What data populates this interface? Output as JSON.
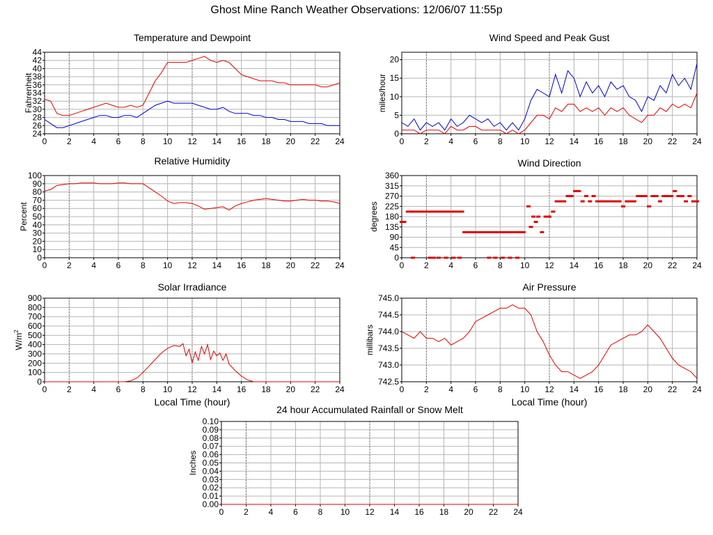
{
  "page": {
    "title": "Ghost Mine Ranch Weather Observations: 12/06/07 11:55p"
  },
  "colors": {
    "grid": "#b4b4b4",
    "series_red": "#e00000",
    "series_blue": "#0000d0",
    "axis": "#000000"
  },
  "chart_data": [
    {
      "id": "temp",
      "type": "line",
      "title": "Temperature and Dewpoint",
      "ylabel": "Fahrenheit",
      "xlabel": "",
      "xlim": [
        0,
        24
      ],
      "ylim": [
        24,
        44
      ],
      "yticks": [
        24,
        26,
        28,
        30,
        32,
        34,
        36,
        38,
        40,
        42,
        44
      ],
      "xticks": [
        0,
        2,
        4,
        6,
        8,
        10,
        12,
        14,
        16,
        18,
        20,
        22,
        24
      ],
      "grid": true,
      "series": [
        {
          "color_key": "series_red",
          "x": [
            0,
            0.5,
            1,
            1.5,
            2,
            2.5,
            3,
            3.5,
            4,
            4.5,
            5,
            5.5,
            6,
            6.5,
            7,
            7.5,
            8,
            8.5,
            9,
            9.5,
            10,
            10.5,
            11,
            11.5,
            12,
            12.5,
            13,
            13.5,
            14,
            14.5,
            15,
            15.5,
            16,
            16.5,
            17,
            17.5,
            18,
            18.5,
            19,
            19.5,
            20,
            20.5,
            21,
            21.5,
            22,
            22.5,
            23,
            23.5,
            24
          ],
          "values": [
            32.5,
            32,
            29,
            28.5,
            28.5,
            29,
            29.5,
            30,
            30.5,
            31,
            31.5,
            31,
            30.5,
            30.5,
            31,
            30.5,
            31,
            34,
            37,
            39,
            41.5,
            41.5,
            41.5,
            41.5,
            42,
            42.5,
            43,
            42,
            41.5,
            42,
            41.5,
            40,
            38.5,
            38,
            37.5,
            37,
            37,
            37,
            36.5,
            36.5,
            36,
            36,
            36,
            36,
            36,
            35.5,
            35.5,
            36,
            36.5
          ]
        },
        {
          "color_key": "series_blue",
          "x": [
            0,
            0.5,
            1,
            1.5,
            2,
            2.5,
            3,
            3.5,
            4,
            4.5,
            5,
            5.5,
            6,
            6.5,
            7,
            7.5,
            8,
            8.5,
            9,
            9.5,
            10,
            10.5,
            11,
            11.5,
            12,
            12.5,
            13,
            13.5,
            14,
            14.5,
            15,
            15.5,
            16,
            16.5,
            17,
            17.5,
            18,
            18.5,
            19,
            19.5,
            20,
            20.5,
            21,
            21.5,
            22,
            22.5,
            23,
            23.5,
            24
          ],
          "values": [
            27.5,
            26.5,
            25.5,
            25.5,
            26,
            26.5,
            27,
            27.5,
            28,
            28.5,
            28.5,
            28,
            28,
            28.5,
            28.5,
            28,
            29,
            30,
            31,
            31.5,
            32,
            31.5,
            31.5,
            31.5,
            31.5,
            31,
            30.5,
            30,
            30,
            30.5,
            29.5,
            29,
            29,
            29,
            28.5,
            28.5,
            28,
            28,
            27.5,
            27.5,
            27,
            27,
            27,
            26.5,
            26.5,
            26.5,
            26,
            26,
            26
          ]
        }
      ]
    },
    {
      "id": "wind",
      "type": "line",
      "title": "Wind Speed and Peak Gust",
      "ylabel": "miles/hour",
      "xlabel": "",
      "xlim": [
        0,
        24
      ],
      "ylim": [
        0,
        22
      ],
      "yticks": [
        0,
        5,
        10,
        15,
        20
      ],
      "xticks": [
        0,
        2,
        4,
        6,
        8,
        10,
        12,
        14,
        16,
        18,
        20,
        22,
        24
      ],
      "grid": true,
      "series": [
        {
          "color_key": "series_blue",
          "x": [
            0,
            0.5,
            1,
            1.5,
            2,
            2.5,
            3,
            3.5,
            4,
            4.5,
            5,
            5.5,
            6,
            6.5,
            7,
            7.5,
            8,
            8.5,
            9,
            9.5,
            10,
            10.5,
            11,
            11.5,
            12,
            12.5,
            13,
            13.5,
            14,
            14.5,
            15,
            15.5,
            16,
            16.5,
            17,
            17.5,
            18,
            18.5,
            19,
            19.5,
            20,
            20.5,
            21,
            21.5,
            22,
            22.5,
            23,
            23.5,
            24
          ],
          "values": [
            3,
            2,
            4,
            1,
            3,
            2,
            3,
            1,
            4,
            2,
            3,
            5,
            4,
            3,
            4,
            2,
            3,
            1,
            3,
            1,
            4,
            9,
            12,
            11,
            10,
            16,
            11,
            17,
            15,
            10,
            14,
            11,
            13,
            10,
            14,
            12,
            13,
            10,
            9,
            6,
            10,
            9,
            13,
            11,
            16,
            13,
            15,
            12,
            19
          ]
        },
        {
          "color_key": "series_red",
          "x": [
            0,
            0.5,
            1,
            1.5,
            2,
            2.5,
            3,
            3.5,
            4,
            4.5,
            5,
            5.5,
            6,
            6.5,
            7,
            7.5,
            8,
            8.5,
            9,
            9.5,
            10,
            10.5,
            11,
            11.5,
            12,
            12.5,
            13,
            13.5,
            14,
            14.5,
            15,
            15.5,
            16,
            16.5,
            17,
            17.5,
            18,
            18.5,
            19,
            19.5,
            20,
            20.5,
            21,
            21.5,
            22,
            22.5,
            23,
            23.5,
            24
          ],
          "values": [
            1,
            1,
            1,
            0,
            1,
            1,
            1,
            0,
            2,
            1,
            1,
            2,
            2,
            1,
            1,
            1,
            1,
            0,
            1,
            0,
            1,
            3,
            5,
            5,
            4,
            7,
            6,
            8,
            8,
            6,
            7,
            6,
            7,
            5,
            7,
            6,
            7,
            5,
            4,
            3,
            5,
            5,
            7,
            6,
            8,
            7,
            8,
            7,
            11
          ]
        }
      ]
    },
    {
      "id": "rh",
      "type": "line",
      "title": "Relative Humidity",
      "ylabel": "Percent",
      "xlabel": "",
      "xlim": [
        0,
        24
      ],
      "ylim": [
        0,
        100
      ],
      "yticks": [
        0,
        10,
        20,
        30,
        40,
        50,
        60,
        70,
        80,
        90,
        100
      ],
      "xticks": [
        0,
        2,
        4,
        6,
        8,
        10,
        12,
        14,
        16,
        18,
        20,
        22,
        24
      ],
      "grid": true,
      "series": [
        {
          "color_key": "series_red",
          "x": [
            0,
            0.5,
            1,
            1.5,
            2,
            2.5,
            3,
            3.5,
            4,
            4.5,
            5,
            5.5,
            6,
            6.5,
            7,
            7.5,
            8,
            8.5,
            9,
            9.5,
            10,
            10.5,
            11,
            11.5,
            12,
            12.5,
            13,
            13.5,
            14,
            14.5,
            15,
            15.5,
            16,
            16.5,
            17,
            17.5,
            18,
            18.5,
            19,
            19.5,
            20,
            20.5,
            21,
            21.5,
            22,
            22.5,
            23,
            23.5,
            24
          ],
          "values": [
            81,
            83,
            88,
            89,
            90,
            90,
            91,
            91,
            91,
            90,
            90,
            90,
            91,
            91,
            90,
            90,
            90,
            85,
            80,
            75,
            69,
            66,
            67,
            67,
            66,
            63,
            59,
            60,
            61,
            62,
            58,
            63,
            66,
            68,
            70,
            71,
            72,
            71,
            70,
            69,
            69,
            70,
            71,
            70,
            70,
            69,
            69,
            68,
            66
          ]
        }
      ]
    },
    {
      "id": "wdir",
      "type": "scatter",
      "title": "Wind Direction",
      "ylabel": "degrees",
      "xlabel": "",
      "xlim": [
        0,
        24
      ],
      "ylim": [
        0,
        360
      ],
      "yticks": [
        0,
        45,
        90,
        135,
        180,
        225,
        270,
        315,
        360
      ],
      "xticks": [
        0,
        2,
        4,
        6,
        8,
        10,
        12,
        14,
        16,
        18,
        20,
        22,
        24
      ],
      "grid": true,
      "series": [
        {
          "color_key": "series_red",
          "x": [
            0,
            0.2,
            0.5,
            0.8,
            1.0,
            1.3,
            1.6,
            1.9,
            2.2,
            2.5,
            2.8,
            3.1,
            3.4,
            3.7,
            4.0,
            4.3,
            4.6,
            4.9,
            0.9,
            2.3,
            2.6,
            3.0,
            3.6,
            4.2,
            4.7,
            5.1,
            5.4,
            5.7,
            6.0,
            6.3,
            6.6,
            6.9,
            7.2,
            7.5,
            7.8,
            8.1,
            8.4,
            8.7,
            9.0,
            9.3,
            9.6,
            9.9,
            7.1,
            7.6,
            8.2,
            8.8,
            9.4,
            10.3,
            10.5,
            10.7,
            10.9,
            11.1,
            11.4,
            11.7,
            12.0,
            12.3,
            12.6,
            12.9,
            13.2,
            13.5,
            13.8,
            14.1,
            14.4,
            14.7,
            15.0,
            15.3,
            15.6,
            15.9,
            16.2,
            16.5,
            16.8,
            17.1,
            17.4,
            17.7,
            18.0,
            18.3,
            18.6,
            18.9,
            19.2,
            19.5,
            19.8,
            20.1,
            20.4,
            20.7,
            21.0,
            21.3,
            21.6,
            21.9,
            22.2,
            22.5,
            22.8,
            23.1,
            23.4,
            23.7,
            24.0
          ],
          "values": [
            157,
            157,
            202,
            202,
            202,
            202,
            202,
            202,
            202,
            202,
            202,
            202,
            202,
            202,
            202,
            202,
            202,
            202,
            0,
            0,
            0,
            0,
            0,
            0,
            0,
            112,
            112,
            112,
            112,
            112,
            112,
            112,
            112,
            112,
            112,
            112,
            112,
            112,
            112,
            112,
            112,
            112,
            0,
            0,
            0,
            0,
            0,
            225,
            135,
            180,
            157,
            180,
            112,
            180,
            180,
            202,
            247,
            247,
            247,
            270,
            270,
            292,
            292,
            247,
            270,
            247,
            270,
            247,
            247,
            247,
            247,
            247,
            247,
            247,
            225,
            247,
            247,
            247,
            270,
            270,
            270,
            225,
            270,
            270,
            247,
            270,
            270,
            270,
            292,
            270,
            270,
            247,
            270,
            247,
            247
          ]
        }
      ]
    },
    {
      "id": "solar",
      "type": "line",
      "title": "Solar Irradiance",
      "ylabel": "W/m2",
      "xlabel": "Local Time (hour)",
      "xlim": [
        0,
        24
      ],
      "ylim": [
        0,
        900
      ],
      "yticks": [
        0,
        100,
        200,
        300,
        400,
        500,
        600,
        700,
        800,
        900
      ],
      "xticks": [
        0,
        2,
        4,
        6,
        8,
        10,
        12,
        14,
        16,
        18,
        20,
        22,
        24
      ],
      "grid": true,
      "series": [
        {
          "color_key": "series_red",
          "x": [
            0,
            6.5,
            7,
            7.5,
            8,
            8.5,
            9,
            9.5,
            10,
            10.5,
            11,
            11.25,
            11.5,
            11.75,
            12,
            12.25,
            12.5,
            12.75,
            13,
            13.25,
            13.5,
            13.75,
            14,
            14.25,
            14.5,
            14.75,
            15,
            15.5,
            16,
            16.5,
            17,
            24
          ],
          "values": [
            0,
            0,
            10,
            40,
            100,
            170,
            240,
            310,
            360,
            390,
            380,
            410,
            280,
            350,
            200,
            320,
            230,
            380,
            300,
            400,
            240,
            330,
            280,
            310,
            230,
            300,
            190,
            120,
            60,
            20,
            0,
            0
          ]
        }
      ]
    },
    {
      "id": "pressure",
      "type": "line",
      "title": "Air Pressure",
      "ylabel": "millibars",
      "xlabel": "Local Time (hour)",
      "xlim": [
        0,
        24
      ],
      "ylim": [
        742.5,
        745.0
      ],
      "yticks": [
        742.5,
        743.0,
        743.5,
        744.0,
        744.5,
        745.0
      ],
      "xticks": [
        0,
        2,
        4,
        6,
        8,
        10,
        12,
        14,
        16,
        18,
        20,
        22,
        24
      ],
      "grid": true,
      "series": [
        {
          "color_key": "series_red",
          "x": [
            0,
            0.5,
            1,
            1.5,
            2,
            2.5,
            3,
            3.5,
            4,
            4.5,
            5,
            5.5,
            6,
            6.5,
            7,
            7.5,
            8,
            8.5,
            9,
            9.5,
            10,
            10.5,
            11,
            11.5,
            12,
            12.5,
            13,
            13.5,
            14,
            14.5,
            15,
            15.5,
            16,
            16.5,
            17,
            17.5,
            18,
            18.5,
            19,
            19.5,
            20,
            20.5,
            21,
            21.5,
            22,
            22.5,
            23,
            23.5,
            24
          ],
          "values": [
            744.0,
            743.9,
            743.8,
            744.0,
            743.8,
            743.8,
            743.7,
            743.8,
            743.6,
            743.7,
            743.8,
            744.0,
            744.3,
            744.4,
            744.5,
            744.6,
            744.7,
            744.7,
            744.8,
            744.7,
            744.7,
            744.5,
            744.0,
            743.7,
            743.3,
            743.0,
            742.8,
            742.8,
            742.7,
            742.6,
            742.7,
            742.8,
            743.0,
            743.3,
            743.6,
            743.7,
            743.8,
            743.9,
            743.9,
            744.0,
            744.2,
            744.0,
            743.8,
            743.5,
            743.2,
            743.0,
            742.9,
            742.8,
            742.6
          ]
        }
      ]
    },
    {
      "id": "rain",
      "type": "line",
      "title": "24 hour Accumulated Rainfall or Snow Melt",
      "ylabel": "Inches",
      "xlabel": "",
      "xlim": [
        0,
        24
      ],
      "ylim": [
        0,
        0.1
      ],
      "yticks": [
        0.0,
        0.01,
        0.02,
        0.03,
        0.04,
        0.05,
        0.06,
        0.07,
        0.08,
        0.09,
        0.1
      ],
      "ytick_labels": [
        "0.00",
        "0.01",
        "0.02",
        "0.03",
        "0.04",
        "0.05",
        "0.06",
        "0.07",
        "0.08",
        "0.09",
        "0.10"
      ],
      "xticks": [
        0,
        2,
        4,
        6,
        8,
        10,
        12,
        14,
        16,
        18,
        20,
        22,
        24
      ],
      "grid": true,
      "series": [
        {
          "color_key": "series_red",
          "x": [
            0,
            24
          ],
          "values": [
            0,
            0
          ]
        }
      ]
    }
  ]
}
